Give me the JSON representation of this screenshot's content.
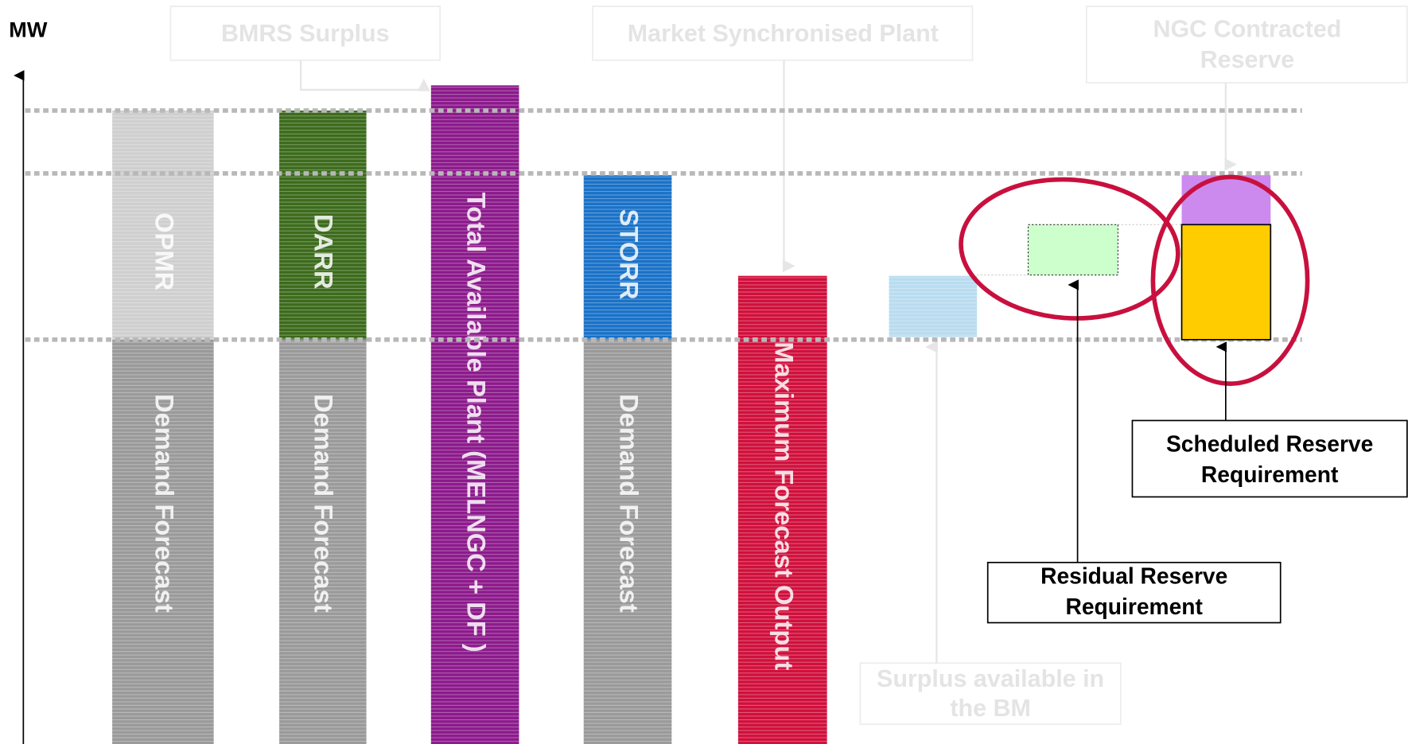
{
  "axis_label": "MW",
  "callouts": {
    "bmrs_surplus": {
      "lines": [
        "BMRS Surplus"
      ]
    },
    "market_synchronised_plant": {
      "lines": [
        "Market Synchronised Plant"
      ]
    },
    "ngc_contracted_reserve": {
      "lines": [
        "NGC Contracted",
        "Reserve"
      ]
    },
    "surplus_available_bm": {
      "lines": [
        "Surplus available in",
        "the BM"
      ]
    },
    "scheduled_reserve_requirement": {
      "lines": [
        "Scheduled Reserve",
        "Requirement"
      ]
    },
    "residual_reserve_requirement": {
      "lines": [
        "Residual Reserve",
        "Requirement"
      ]
    }
  },
  "bars": {
    "opmr": {
      "top": "OPMR",
      "bottom": "Demand Forecast"
    },
    "darr": {
      "top": "DARR",
      "bottom": "Demand Forecast"
    },
    "total_available": {
      "label": "Total Available Plant (MELNGC + DF )"
    },
    "storr": {
      "top": "STORR",
      "bottom": "Demand Forecast"
    },
    "max_forecast": {
      "label": "Maximum Forecast Output"
    }
  }
}
